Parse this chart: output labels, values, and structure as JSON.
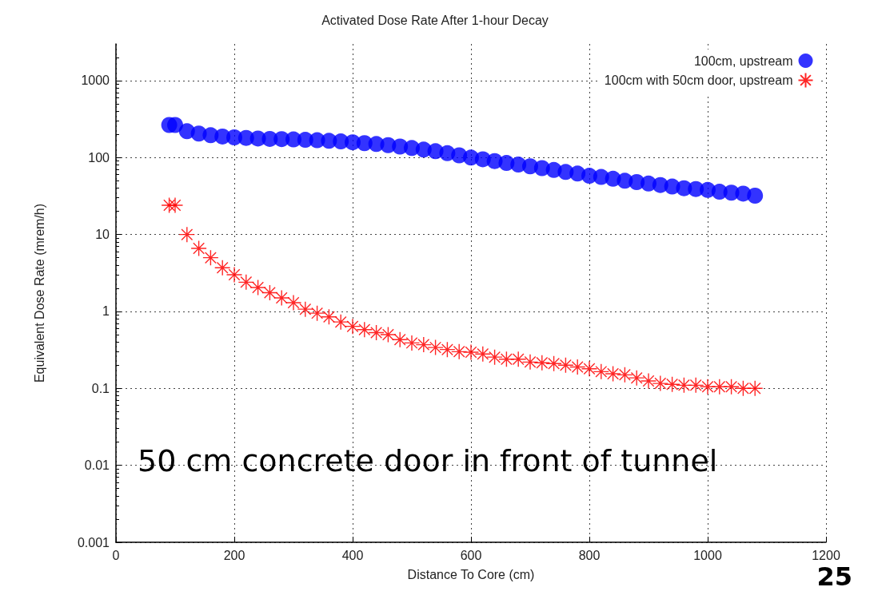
{
  "chart_data": {
    "type": "scatter",
    "title": "Activated Dose Rate After 1-hour Decay",
    "xlabel": "Distance To Core (cm)",
    "ylabel": "Equivalent Dose Rate (mrem/h)",
    "x": [
      90,
      100,
      120,
      140,
      160,
      180,
      200,
      220,
      240,
      260,
      280,
      300,
      320,
      340,
      360,
      380,
      400,
      420,
      440,
      460,
      480,
      500,
      520,
      540,
      560,
      580,
      600,
      620,
      640,
      660,
      680,
      700,
      720,
      740,
      760,
      780,
      800,
      820,
      840,
      860,
      880,
      900,
      920,
      940,
      960,
      980,
      1000,
      1020,
      1040,
      1060,
      1080
    ],
    "series": [
      {
        "name": "100cm, upstream",
        "color": "#0000ff",
        "marker": "circle",
        "values": [
          265,
          265,
          220,
          205,
          195,
          188,
          183,
          180,
          177,
          175,
          174,
          172,
          170,
          168,
          165,
          162,
          158,
          154,
          150,
          145,
          139,
          133,
          127,
          121,
          114,
          107,
          100,
          95,
          90,
          85,
          81,
          77,
          73,
          69,
          65,
          62,
          58,
          56,
          53,
          50,
          48,
          46,
          44,
          42,
          40,
          39,
          38,
          36,
          35,
          34,
          32
        ]
      },
      {
        "name": "100cm with 50cm door, upstream",
        "color": "#ff0000",
        "marker": "cross",
        "values": [
          24,
          24,
          10,
          6.6,
          5,
          3.7,
          3,
          2.4,
          2.05,
          1.75,
          1.5,
          1.3,
          1.07,
          0.95,
          0.85,
          0.73,
          0.64,
          0.58,
          0.53,
          0.5,
          0.43,
          0.39,
          0.37,
          0.34,
          0.32,
          0.3,
          0.295,
          0.28,
          0.255,
          0.24,
          0.24,
          0.22,
          0.215,
          0.21,
          0.2,
          0.19,
          0.18,
          0.165,
          0.155,
          0.15,
          0.137,
          0.125,
          0.116,
          0.113,
          0.11,
          0.11,
          0.105,
          0.105,
          0.105,
          0.1,
          0.1
        ]
      }
    ],
    "xlim": [
      0,
      1200
    ],
    "xticks": [
      0,
      200,
      400,
      600,
      800,
      1000,
      1200
    ],
    "ylim": [
      0.001,
      3000
    ],
    "yticks": [
      0.001,
      0.01,
      0.1,
      1,
      10,
      100,
      1000
    ],
    "log": "y",
    "grid": true,
    "legend": "top right",
    "annotations": [
      "50 cm concrete door in front of tunnel",
      "25"
    ]
  }
}
